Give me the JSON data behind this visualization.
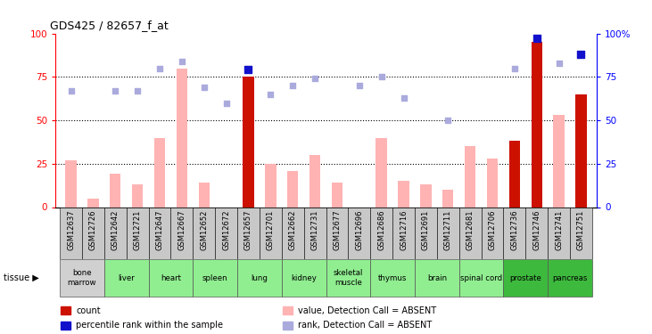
{
  "title": "GDS425 / 82657_f_at",
  "samples": [
    "GSM12637",
    "GSM12726",
    "GSM12642",
    "GSM12721",
    "GSM12647",
    "GSM12667",
    "GSM12652",
    "GSM12672",
    "GSM12657",
    "GSM12701",
    "GSM12662",
    "GSM12731",
    "GSM12677",
    "GSM12696",
    "GSM12686",
    "GSM12716",
    "GSM12691",
    "GSM12711",
    "GSM12681",
    "GSM12706",
    "GSM12736",
    "GSM12746",
    "GSM12741",
    "GSM12751"
  ],
  "tissue_groups": [
    {
      "label": "bone\nmarrow",
      "samples": [
        0,
        1
      ],
      "color": "#d0d0d0"
    },
    {
      "label": "liver",
      "samples": [
        2,
        3
      ],
      "color": "#90EE90"
    },
    {
      "label": "heart",
      "samples": [
        4,
        5
      ],
      "color": "#90EE90"
    },
    {
      "label": "spleen",
      "samples": [
        6,
        7
      ],
      "color": "#90EE90"
    },
    {
      "label": "lung",
      "samples": [
        8,
        9
      ],
      "color": "#90EE90"
    },
    {
      "label": "kidney",
      "samples": [
        10,
        11
      ],
      "color": "#90EE90"
    },
    {
      "label": "skeletal\nmuscle",
      "samples": [
        12,
        13
      ],
      "color": "#90EE90"
    },
    {
      "label": "thymus",
      "samples": [
        14,
        15
      ],
      "color": "#90EE90"
    },
    {
      "label": "brain",
      "samples": [
        16,
        17
      ],
      "color": "#90EE90"
    },
    {
      "label": "spinal cord",
      "samples": [
        18,
        19
      ],
      "color": "#90EE90"
    },
    {
      "label": "prostate",
      "samples": [
        20,
        21
      ],
      "color": "#3dba3d"
    },
    {
      "label": "pancreas",
      "samples": [
        22,
        23
      ],
      "color": "#3dba3d"
    }
  ],
  "pink_bars": [
    27,
    5,
    19,
    13,
    40,
    80,
    14,
    0,
    0,
    25,
    21,
    30,
    14,
    0,
    40,
    15,
    13,
    10,
    35,
    28,
    0,
    95,
    53,
    0
  ],
  "red_bars": [
    0,
    0,
    0,
    0,
    0,
    0,
    0,
    0,
    75,
    0,
    0,
    0,
    0,
    0,
    0,
    0,
    0,
    0,
    0,
    0,
    38,
    95,
    0,
    65
  ],
  "dark_blue_squares": [
    null,
    null,
    null,
    null,
    null,
    null,
    null,
    null,
    79,
    null,
    null,
    null,
    null,
    null,
    null,
    null,
    null,
    null,
    null,
    null,
    null,
    97,
    null,
    88
  ],
  "light_blue_squares": [
    67,
    null,
    67,
    67,
    80,
    84,
    69,
    60,
    null,
    65,
    70,
    74,
    null,
    70,
    75,
    63,
    null,
    50,
    null,
    null,
    80,
    null,
    83,
    null
  ],
  "ylim": [
    0,
    100
  ],
  "yticks_left": [
    0,
    25,
    50,
    75,
    100
  ],
  "yticks_right_labels": [
    "0",
    "25",
    "50",
    "75",
    "100%"
  ],
  "dotted_lines": [
    25,
    50,
    75
  ],
  "bar_width": 0.5,
  "sq_size_light": 22,
  "sq_size_dark": 28,
  "pink_color": "#ffb3b3",
  "red_color": "#cc1100",
  "dark_blue_color": "#1111cc",
  "light_blue_color": "#aaaadd",
  "xtick_bg_color": "#c8c8c8",
  "tissue_border_color": "#555555"
}
